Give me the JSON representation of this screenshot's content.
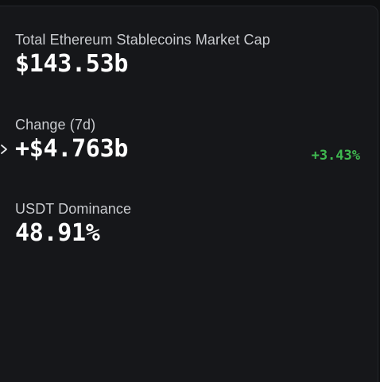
{
  "stats": {
    "market_cap": {
      "label": "Total Ethereum Stablecoins Market Cap",
      "value": "$143.53b"
    },
    "change": {
      "label": "Change (7d)",
      "value": "+$4.763b",
      "percent": "+3.43%"
    },
    "dominance": {
      "label": "USDT Dominance",
      "value": "48.91%"
    }
  },
  "colors": {
    "background": "#0f1012",
    "panel": "#16171a",
    "positive": "#3fb950",
    "label": "#c9cbcf",
    "value": "#ffffff"
  },
  "icons": {
    "expand": "chevron-right-icon"
  }
}
